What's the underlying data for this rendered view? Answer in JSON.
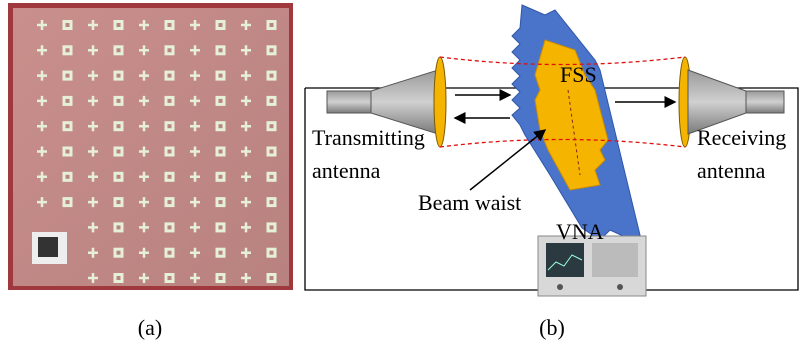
{
  "captions": {
    "a": "(a)",
    "b": "(b)"
  },
  "diagram": {
    "fss": "FSS",
    "transmitting_antenna": [
      "Transmitting",
      "antenna"
    ],
    "receiving_antenna": [
      "Receiving",
      "antenna"
    ],
    "beam_waist": "Beam waist",
    "vna": "VNA"
  }
}
